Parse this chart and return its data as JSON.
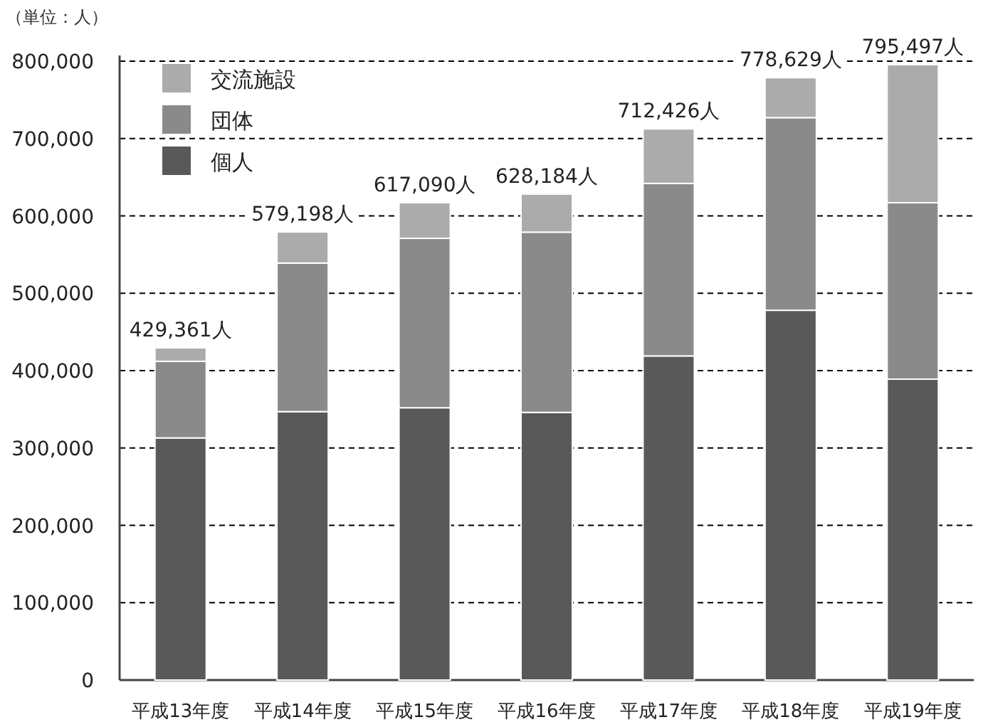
{
  "chart_data": {
    "type": "bar",
    "stacked": true,
    "ylabel": "（単位：人）",
    "categories": [
      "平成13年度",
      "平成14年度",
      "平成15年度",
      "平成16年度",
      "平成17年度",
      "平成18年度",
      "平成19年度"
    ],
    "series": [
      {
        "name": "個人",
        "color": "#5a5959",
        "values": [
          313000,
          347000,
          352000,
          346000,
          419000,
          478000,
          389000
        ]
      },
      {
        "name": "団体",
        "color": "#8a8a8a",
        "values": [
          99000,
          192000,
          219000,
          233000,
          223000,
          249000,
          228000
        ]
      },
      {
        "name": "交流施設",
        "color": "#aaabaa",
        "values": [
          17361,
          40198,
          46090,
          49184,
          70426,
          51629,
          178497
        ]
      }
    ],
    "totals": [
      "429,361人",
      "579,198人",
      "617,090人",
      "628,184人",
      "712,426人",
      "778,629人",
      "795,497人"
    ],
    "ylim": [
      0,
      800000
    ],
    "yticks": [
      0,
      {
        "value": 100000,
        "label": "100,000"
      },
      {
        "value": 200000,
        "label": "200,000"
      },
      {
        "value": 300000,
        "label": "300,000"
      },
      {
        "value": 400000,
        "label": "400,000"
      },
      {
        "value": 500000,
        "label": "500,000"
      },
      {
        "value": 600000,
        "label": "600,000"
      },
      {
        "value": 700000,
        "label": "700,000"
      },
      {
        "value": 800000,
        "label": "800,000"
      }
    ],
    "grid": "y",
    "legend": "top left"
  }
}
